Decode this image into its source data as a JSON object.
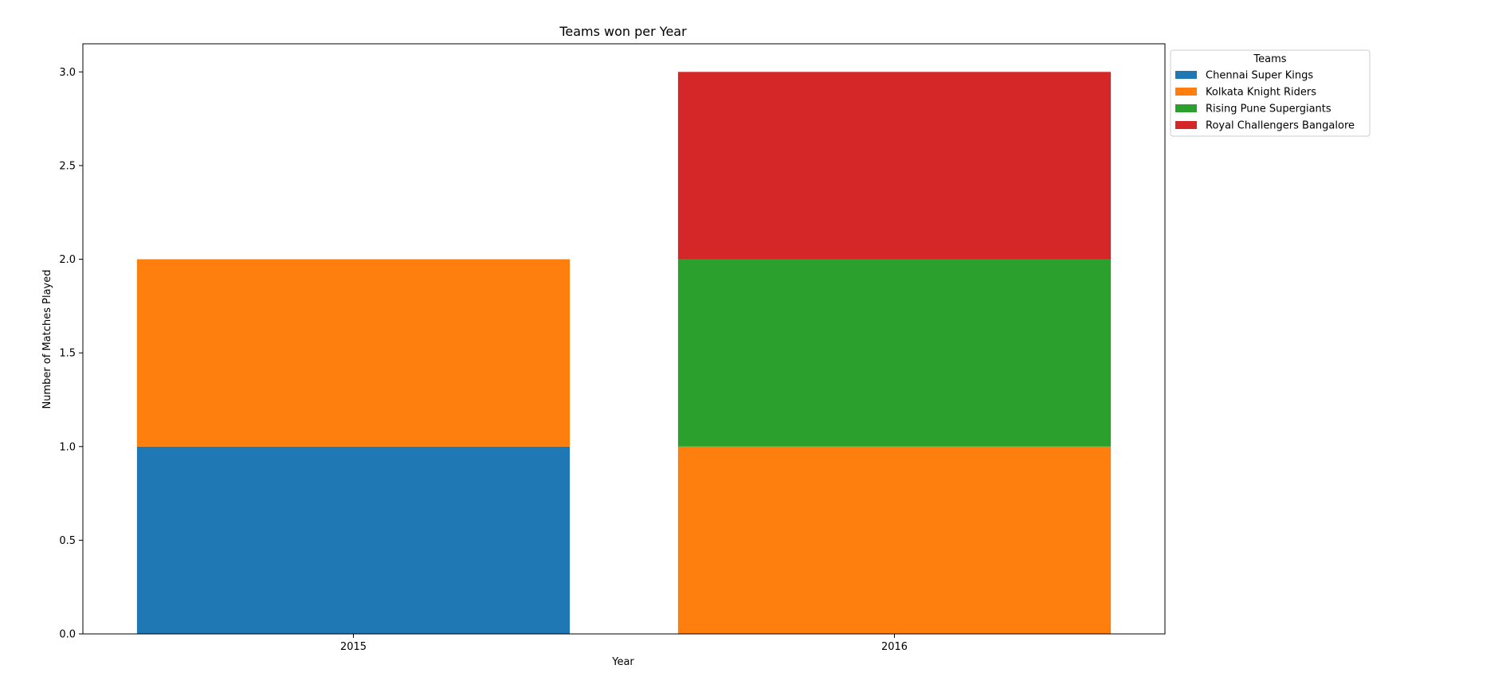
{
  "chart_data": {
    "type": "bar",
    "stacked": true,
    "title": "Teams won per Year",
    "xlabel": "Year",
    "ylabel": "Number of Matches Played",
    "categories": [
      "2015",
      "2016"
    ],
    "ylim": [
      0,
      3.15
    ],
    "yticks": [
      "0.0",
      "0.5",
      "1.0",
      "1.5",
      "2.0",
      "2.5",
      "3.0"
    ],
    "grid": false,
    "legend": {
      "title": "Teams",
      "placement": "outside-upper-right"
    },
    "series": [
      {
        "name": "Chennai Super Kings",
        "color": "#1f77b4",
        "values": [
          1,
          0
        ]
      },
      {
        "name": "Kolkata Knight Riders",
        "color": "#ff7f0e",
        "values": [
          1,
          1
        ]
      },
      {
        "name": "Rising Pune Supergiants",
        "color": "#2ca02c",
        "values": [
          0,
          1
        ]
      },
      {
        "name": "Royal Challengers Bangalore",
        "color": "#d62728",
        "values": [
          0,
          1
        ]
      }
    ]
  }
}
